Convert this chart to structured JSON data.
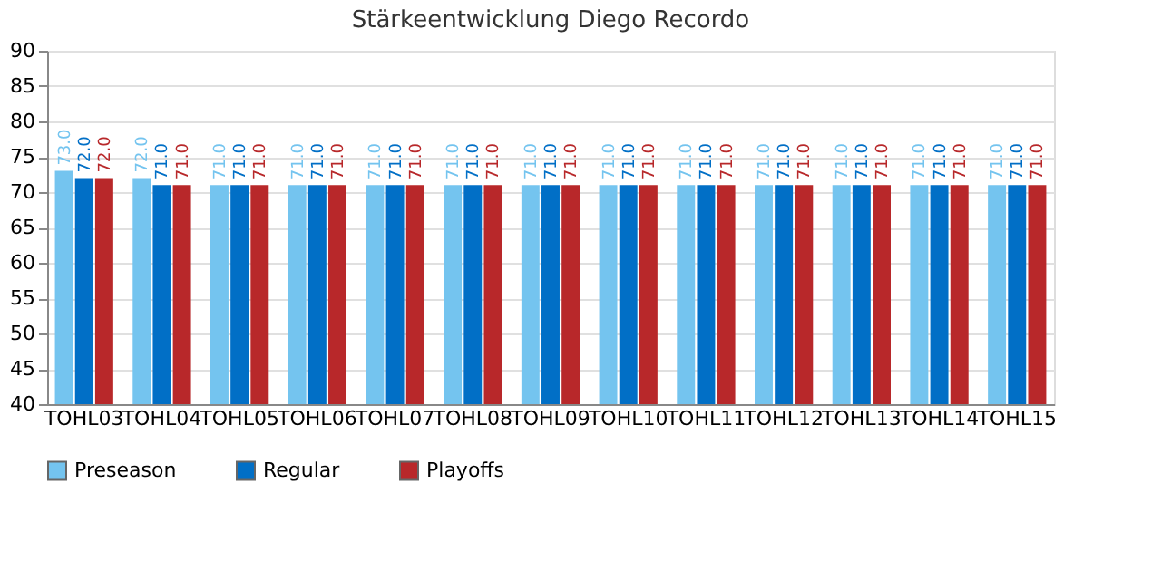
{
  "chart_data": {
    "type": "bar",
    "title": "Stärkeentwicklung Diego Recordo",
    "categories": [
      "TOHL03",
      "TOHL04",
      "TOHL05",
      "TOHL06",
      "TOHL07",
      "TOHL08",
      "TOHL09",
      "TOHL10",
      "TOHL11",
      "TOHL12",
      "TOHL13",
      "TOHL14",
      "TOHL15"
    ],
    "series": [
      {
        "name": "Preseason",
        "color": "#74c4ef",
        "values": [
          73,
          72,
          71,
          71,
          71,
          71,
          71,
          71,
          71,
          71,
          71,
          71,
          71
        ],
        "value_labels": [
          "73.0",
          "72.0",
          "71.0",
          "71.0",
          "71.0",
          "71.0",
          "71.0",
          "71.0",
          "71.0",
          "71.0",
          "71.0",
          "71.0",
          "71.0"
        ]
      },
      {
        "name": "Regular",
        "color": "#016fc6",
        "values": [
          72,
          71,
          71,
          71,
          71,
          71,
          71,
          71,
          71,
          71,
          71,
          71,
          71
        ],
        "value_labels": [
          "72.0",
          "71.0",
          "71.0",
          "71.0",
          "71.0",
          "71.0",
          "71.0",
          "71.0",
          "71.0",
          "71.0",
          "71.0",
          "71.0",
          "71.0"
        ]
      },
      {
        "name": "Playoffs",
        "color": "#b8282a",
        "values": [
          72,
          71,
          71,
          71,
          71,
          71,
          71,
          71,
          71,
          71,
          71,
          71,
          71
        ],
        "value_labels": [
          "72.0",
          "71.0",
          "71.0",
          "71.0",
          "71.0",
          "71.0",
          "71.0",
          "71.0",
          "71.0",
          "71.0",
          "71.0",
          "71.0",
          "71.0"
        ]
      }
    ],
    "ylim": [
      40,
      90
    ],
    "yticks": [
      40,
      45,
      50,
      55,
      60,
      65,
      70,
      75,
      80,
      85,
      90
    ],
    "grid": "y",
    "legend": "bottom"
  }
}
